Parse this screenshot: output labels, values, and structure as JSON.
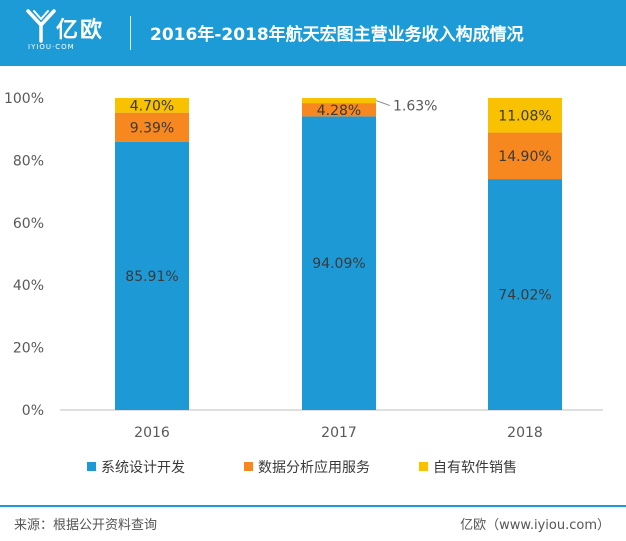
{
  "header": {
    "logo_text": "亿欧",
    "logo_sub": "IYIOU·COM",
    "title": "2016年-2018年航天宏图主营业务收入构成情况"
  },
  "footer": {
    "source": "来源：根据公开资料查询",
    "brand": "亿欧（www.iyiou.com）"
  },
  "colors": {
    "header": "#1c9bd6",
    "series": [
      "#1d9ad6",
      "#f7871f",
      "#f8c200"
    ]
  },
  "chart_data": {
    "type": "bar",
    "stacked": true,
    "categories": [
      "2016",
      "2017",
      "2018"
    ],
    "series": [
      {
        "name": "系统设计开发",
        "values": [
          85.91,
          94.09,
          74.02
        ],
        "labels": [
          "85.91%",
          "94.09%",
          "74.02%"
        ]
      },
      {
        "name": "数据分析应用服务",
        "values": [
          9.39,
          4.28,
          14.9
        ],
        "labels": [
          "9.39%",
          "4.28%",
          "14.90%"
        ]
      },
      {
        "name": "自有软件销售",
        "values": [
          4.7,
          1.63,
          11.08
        ],
        "labels": [
          "4.70%",
          "1.63%",
          "11.08%"
        ]
      }
    ],
    "ylim": [
      0,
      100
    ],
    "yticks": [
      "0%",
      "20%",
      "40%",
      "60%",
      "80%",
      "100%"
    ],
    "grid": false,
    "legend": "bottom"
  }
}
